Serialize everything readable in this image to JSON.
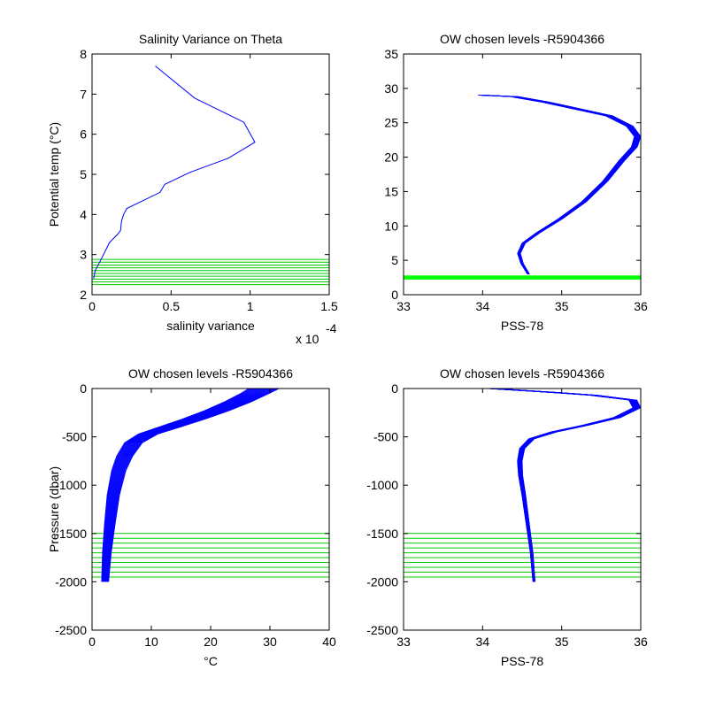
{
  "chart_data": [
    {
      "type": "line",
      "title": "Salinity Variance on Theta",
      "xlabel": "salinity variance",
      "ylabel": "Potential temp (°C)",
      "x_exponent_label": "x 10",
      "x_exponent_power": "-4",
      "xlim": [
        0,
        0.00015
      ],
      "ylim": [
        2,
        8
      ],
      "x_ticks": [
        0,
        5e-05,
        0.0001,
        0.00015
      ],
      "x_tick_labels": [
        "0",
        "0.5",
        "1",
        "1.5"
      ],
      "y_ticks": [
        2,
        3,
        4,
        5,
        6,
        7,
        8
      ],
      "y_tick_labels": [
        "2",
        "3",
        "4",
        "5",
        "6",
        "7",
        "8"
      ],
      "series": [
        {
          "color": "#0000ff",
          "x": [
            4e-05,
            6.5e-05,
            9.6e-05,
            0.000103,
            8.6e-05,
            6.2e-05,
            4.6e-05,
            4.3e-05,
            2.2e-05,
            2e-05,
            1.9e-05,
            1.85e-05,
            1.8e-05,
            1.6e-05,
            1.1e-05,
            6e-06,
            2e-06,
            1e-06
          ],
          "y": [
            7.7,
            6.9,
            6.3,
            5.8,
            5.4,
            5.05,
            4.75,
            4.55,
            4.15,
            4.0,
            3.88,
            3.8,
            3.6,
            3.5,
            3.3,
            2.9,
            2.6,
            2.4
          ]
        }
      ],
      "reference_levels": {
        "color": "#00cc00",
        "values": [
          2.25,
          2.32,
          2.39,
          2.46,
          2.53,
          2.6,
          2.67,
          2.74,
          2.81,
          2.88
        ]
      }
    },
    {
      "type": "line",
      "title": "OW chosen levels -R5904366",
      "xlabel": "PSS-78",
      "ylabel": "",
      "xlim": [
        33,
        36
      ],
      "ylim": [
        0,
        35
      ],
      "x_ticks": [
        33,
        34,
        35,
        36
      ],
      "x_tick_labels": [
        "33",
        "34",
        "35",
        "36"
      ],
      "y_ticks": [
        0,
        5,
        10,
        15,
        20,
        25,
        30,
        35
      ],
      "y_tick_labels": [
        "0",
        "5",
        "10",
        "15",
        "20",
        "25",
        "30",
        "35"
      ],
      "series": [
        {
          "color": "#0000ff",
          "x": [
            34.58,
            34.5,
            34.46,
            34.52,
            34.7,
            34.98,
            35.28,
            35.55,
            35.76,
            35.92,
            35.96,
            35.86,
            35.6,
            35.2,
            34.8,
            34.4,
            34.0
          ],
          "y": [
            3.0,
            4.5,
            6.0,
            7.5,
            9.0,
            11.0,
            13.5,
            16.5,
            19.5,
            21.5,
            23.0,
            24.5,
            26.0,
            27.0,
            28.0,
            28.8,
            29.0
          ]
        }
      ],
      "reference_levels": {
        "color": "#00ff00",
        "values": [
          2.3,
          2.4,
          2.5,
          2.6,
          2.7
        ]
      }
    },
    {
      "type": "line",
      "title": "OW chosen levels -R5904366",
      "xlabel": "°C",
      "ylabel": "Pressure (dbar)",
      "xlim": [
        0,
        40
      ],
      "ylim": [
        -2500,
        0
      ],
      "x_ticks": [
        0,
        10,
        20,
        30,
        40
      ],
      "x_tick_labels": [
        "0",
        "10",
        "20",
        "30",
        "40"
      ],
      "y_ticks": [
        -2500,
        -2000,
        -1500,
        -1000,
        -500,
        0
      ],
      "y_tick_labels": [
        "-2500",
        "-2000",
        "-1500",
        "-1000",
        "-500",
        "0"
      ],
      "series": [
        {
          "color": "#0000ff",
          "x": [
            2.2,
            2.5,
            3.0,
            3.6,
            4.5,
            5.5,
            7.0,
            9.5,
            13.0,
            17.0,
            21.0,
            24.5,
            27.5,
            29.0
          ],
          "y": [
            -2000,
            -1700,
            -1400,
            -1100,
            -850,
            -700,
            -560,
            -470,
            -400,
            -320,
            -230,
            -140,
            -50,
            0
          ]
        }
      ],
      "reference_levels": {
        "color": "#00cc00",
        "values": [
          -1500,
          -1550,
          -1600,
          -1650,
          -1700,
          -1750,
          -1800,
          -1850,
          -1900,
          -1950
        ]
      }
    },
    {
      "type": "line",
      "title": "OW chosen levels -R5904366",
      "xlabel": "PSS-78",
      "ylabel": "",
      "xlim": [
        33,
        36
      ],
      "ylim": [
        -2500,
        0
      ],
      "x_ticks": [
        33,
        34,
        35,
        36
      ],
      "x_tick_labels": [
        "33",
        "34",
        "35",
        "36"
      ],
      "y_ticks": [
        -2500,
        -2000,
        -1500,
        -1000,
        -500,
        0
      ],
      "y_tick_labels": [
        "-2500",
        "-2000",
        "-1500",
        "-1000",
        "-500",
        "0"
      ],
      "series": [
        {
          "color": "#0000ff",
          "x": [
            34.65,
            34.62,
            34.57,
            34.52,
            34.48,
            34.47,
            34.5,
            34.62,
            34.9,
            35.3,
            35.7,
            35.95,
            35.9,
            35.4,
            34.9,
            34.5,
            34.1
          ],
          "y": [
            -2000,
            -1700,
            -1400,
            -1100,
            -900,
            -750,
            -620,
            -520,
            -450,
            -380,
            -300,
            -200,
            -120,
            -70,
            -40,
            -20,
            0
          ]
        }
      ],
      "reference_levels": {
        "color": "#00cc00",
        "values": [
          -1500,
          -1550,
          -1600,
          -1650,
          -1700,
          -1750,
          -1800,
          -1850,
          -1900,
          -1950
        ]
      }
    }
  ]
}
